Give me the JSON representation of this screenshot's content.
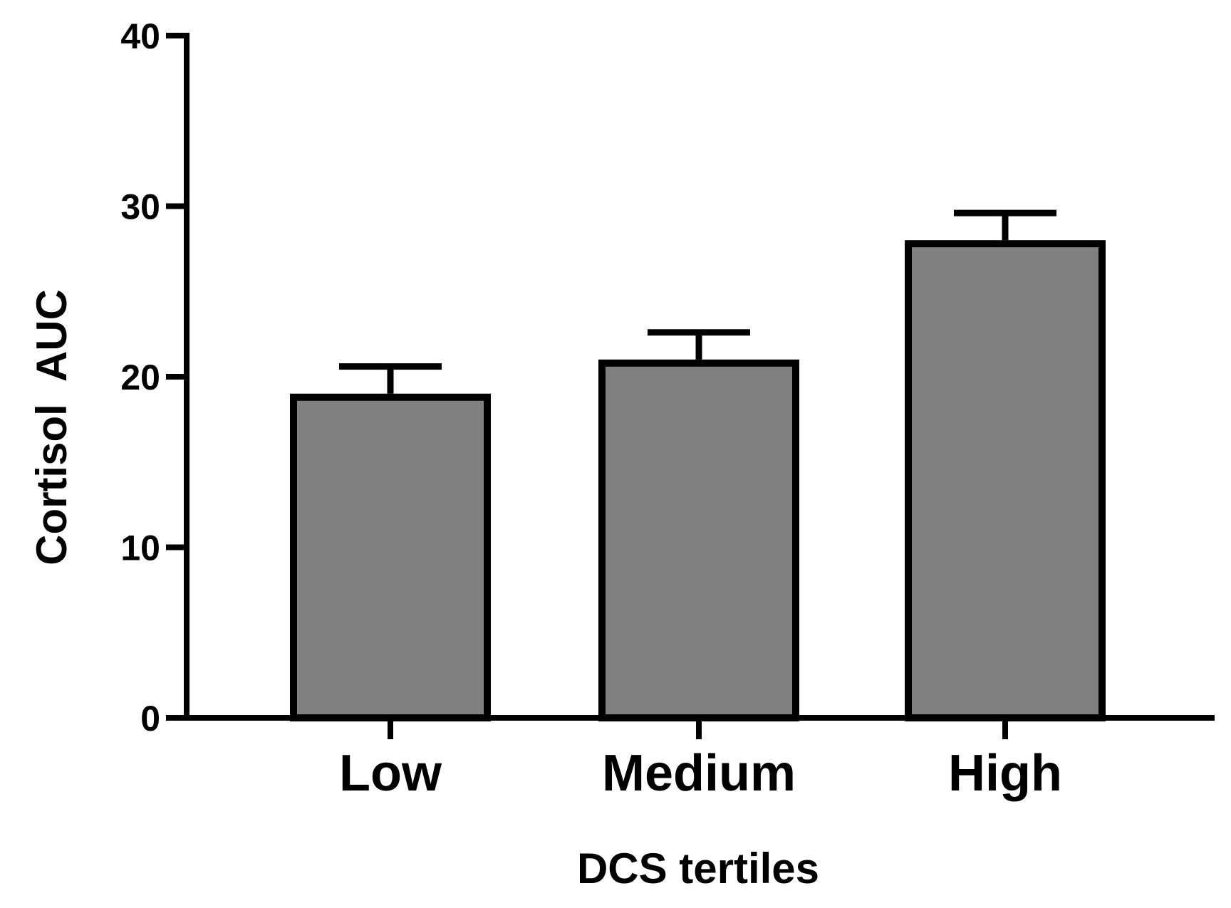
{
  "chart_data": {
    "type": "bar",
    "title": "",
    "xlabel": "DCS tertiles",
    "ylabel": "Cortisol  AUC",
    "categories": [
      "Low",
      "Medium",
      "High"
    ],
    "values": [
      18.8,
      20.8,
      27.8
    ],
    "errors": [
      1.8,
      1.8,
      1.8
    ],
    "ylim": [
      0,
      40
    ],
    "yticks": [
      0,
      10,
      20,
      30,
      40
    ],
    "ytick_labels": [
      "0",
      "10",
      "20",
      "30",
      "40"
    ],
    "grid": false,
    "legend": "none",
    "colors": {
      "bar_fill": "#808080",
      "bar_stroke": "#000000",
      "axis": "#000000"
    }
  }
}
